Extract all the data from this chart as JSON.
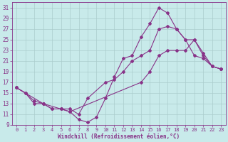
{
  "xlabel": "Windchill (Refroidissement éolien,°C)",
  "background_color": "#c8eaea",
  "grid_color": "#aacccc",
  "line_color": "#883388",
  "xlim": [
    -0.5,
    23.5
  ],
  "ylim": [
    9,
    32
  ],
  "xticks": [
    0,
    1,
    2,
    3,
    4,
    5,
    6,
    7,
    8,
    9,
    10,
    11,
    12,
    13,
    14,
    15,
    16,
    17,
    18,
    19,
    20,
    21,
    22,
    23
  ],
  "yticks": [
    9,
    11,
    13,
    15,
    17,
    19,
    21,
    23,
    25,
    27,
    29,
    31
  ],
  "line1_x": [
    0,
    1,
    2,
    3,
    4,
    5,
    6,
    14,
    15,
    16,
    17,
    18,
    19,
    20,
    21,
    22,
    23
  ],
  "line1_y": [
    16,
    15,
    13,
    13,
    12,
    12,
    11.5,
    17,
    19,
    22,
    23,
    23,
    23,
    25,
    22,
    20,
    19.5
  ],
  "line2_x": [
    0,
    1,
    2,
    3,
    5,
    6,
    7,
    8,
    9,
    10,
    11,
    12,
    13,
    14,
    15,
    16,
    17,
    18,
    19,
    20,
    21,
    22,
    23
  ],
  "line2_y": [
    16,
    15,
    13.5,
    13,
    12,
    11.5,
    10,
    9.5,
    10.5,
    14,
    18,
    21.5,
    22,
    25.5,
    28,
    31,
    30,
    27,
    25,
    22,
    21.5,
    20,
    19.5
  ],
  "line3_x": [
    0,
    3,
    4,
    5,
    6,
    7,
    8,
    10,
    11,
    12,
    13,
    14,
    15,
    16,
    17,
    18,
    19,
    20,
    21,
    22,
    23
  ],
  "line3_y": [
    16,
    13,
    12,
    12,
    12,
    11,
    14,
    17,
    17.5,
    19,
    21,
    22,
    23,
    27,
    27.5,
    27,
    25,
    25,
    22.5,
    20,
    19.5
  ]
}
